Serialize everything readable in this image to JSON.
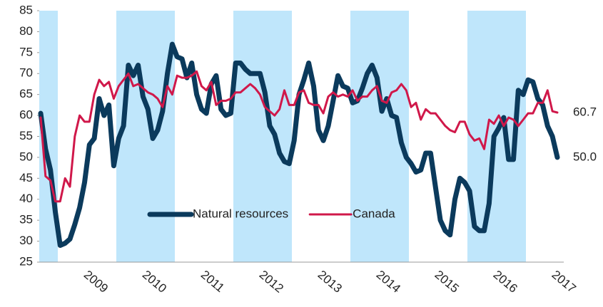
{
  "chart_data": {
    "type": "line",
    "categories": [
      null,
      null,
      null,
      null,
      null,
      null,
      null,
      null,
      null,
      null,
      "2009",
      null,
      null,
      null,
      null,
      null,
      null,
      null,
      null,
      null,
      null,
      null,
      "2010",
      null,
      null,
      null,
      null,
      null,
      null,
      null,
      null,
      null,
      null,
      null,
      "2011",
      null,
      null,
      null,
      null,
      null,
      null,
      null,
      null,
      null,
      null,
      null,
      "2012",
      null,
      null,
      null,
      null,
      null,
      null,
      null,
      null,
      null,
      null,
      null,
      "2013",
      null,
      null,
      null,
      null,
      null,
      null,
      null,
      null,
      null,
      null,
      null,
      "2014",
      null,
      null,
      null,
      null,
      null,
      null,
      null,
      null,
      null,
      null,
      null,
      "2015",
      null,
      null,
      null,
      null,
      null,
      null,
      null,
      null,
      null,
      null,
      null,
      "2016",
      null,
      null,
      null,
      null,
      null,
      null,
      null,
      null,
      null,
      null,
      null,
      "2017"
    ],
    "series": [
      {
        "name": "Natural resources",
        "color": "#0b3a5c",
        "values": [
          60.5,
          52,
          47,
          37,
          29,
          29.5,
          30.5,
          34,
          38,
          44,
          53,
          54.5,
          64,
          60,
          62.5,
          48,
          54.5,
          57.5,
          72,
          69.5,
          72,
          64.5,
          61.5,
          54.5,
          56.5,
          61,
          70,
          77,
          74,
          73.5,
          69,
          72.5,
          65,
          61.5,
          60.5,
          67.5,
          69.5,
          61.5,
          60,
          60.5,
          72.5,
          72.5,
          71,
          70,
          70,
          70,
          65.5,
          57.5,
          55.5,
          51,
          49,
          48.5,
          54,
          65,
          68.5,
          72.5,
          67,
          56.5,
          54,
          57.5,
          63.5,
          69.5,
          67,
          66.5,
          63,
          63.5,
          66.5,
          70,
          72,
          69,
          61,
          64,
          60,
          59.5,
          53.5,
          50,
          48.5,
          46.5,
          47,
          51,
          51,
          43,
          35,
          32.5,
          31.5,
          40,
          45,
          44,
          42,
          33.5,
          32.5,
          32.5,
          39,
          55,
          57,
          59.5,
          49.5,
          49.5,
          66,
          65,
          68.5,
          68,
          64,
          62.5,
          57.5,
          55,
          50
        ],
        "value_labels": [
          null,
          null,
          null,
          null,
          null,
          null,
          null,
          null,
          null,
          null,
          null,
          null,
          null,
          null,
          null,
          null,
          null,
          null,
          null,
          null,
          null,
          null,
          null,
          null,
          null,
          null,
          null,
          null,
          null,
          null,
          null,
          null,
          null,
          null,
          null,
          null,
          null,
          null,
          null,
          null,
          null,
          null,
          null,
          null,
          null,
          null,
          null,
          null,
          null,
          null,
          null,
          null,
          null,
          null,
          null,
          null,
          null,
          null,
          null,
          null,
          null,
          null,
          null,
          null,
          null,
          null,
          null,
          null,
          null,
          null,
          null,
          null,
          null,
          null,
          null,
          null,
          null,
          null,
          null,
          null,
          null,
          null,
          null,
          null,
          null,
          null,
          null,
          null,
          null,
          null,
          null,
          null,
          null,
          null,
          null,
          null,
          null,
          null,
          null,
          null,
          null,
          null,
          null,
          null,
          null,
          null,
          "50.0"
        ]
      },
      {
        "name": "Canada",
        "color": "#d0184a",
        "values": [
          59.5,
          45.5,
          44.5,
          39.5,
          39.5,
          45,
          43,
          55,
          60,
          58.5,
          58.5,
          65,
          68.5,
          67,
          68,
          64,
          67,
          68.5,
          70,
          67,
          67.5,
          66.5,
          65.5,
          65,
          64,
          62,
          67,
          65,
          69.5,
          69,
          69,
          69.5,
          70.5,
          67,
          66,
          68,
          62.5,
          63.5,
          63.5,
          64,
          65.5,
          65.5,
          66.5,
          67.5,
          66.5,
          65,
          62,
          61,
          60,
          61.5,
          66,
          62.5,
          62.5,
          65.5,
          66,
          63,
          62.5,
          62.5,
          60.5,
          64.5,
          65.5,
          64.5,
          65,
          64.5,
          66,
          63.5,
          64.5,
          64.5,
          66,
          67,
          63.5,
          63,
          65.5,
          66,
          67.5,
          66,
          62,
          63,
          59,
          61.5,
          60.5,
          60.5,
          59,
          57.5,
          56.5,
          56,
          58.5,
          58.5,
          55.5,
          54,
          54.5,
          52,
          59,
          58,
          60,
          57.5,
          59.5,
          59,
          57.5,
          59,
          60.5,
          60.5,
          63,
          63,
          66,
          61,
          60.7
        ]
      }
    ],
    "ylim": [
      25,
      85
    ],
    "yticks": [
      25,
      30,
      35,
      40,
      45,
      50,
      55,
      60,
      65,
      70,
      75,
      80,
      85
    ],
    "legend": "lower center",
    "grid": false
  }
}
